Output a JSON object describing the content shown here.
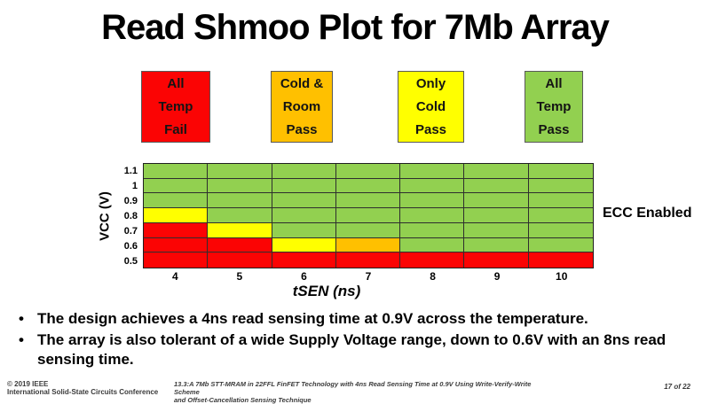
{
  "title": "Read Shmoo Plot for 7Mb Array",
  "bullets": [
    "The design achieves a 4ns read sensing time at 0.9V across the temperature.",
    "The array is also tolerant of a wide Supply Voltage range, down to 0.6V with an 8ns read sensing time."
  ],
  "footer": {
    "copyright": "© 2019 IEEE",
    "conference": "International Solid-State Circuits Conference",
    "paper_line1": "13.3:A 7Mb STT-MRAM in 22FFL FinFET Technology with 4ns Read Sensing Time at 0.9V Using Write-Verify-Write Scheme",
    "paper_line2": "and Offset-Cancellation Sensing Technique",
    "page": "17 of 22"
  },
  "chart_data": {
    "type": "heatmap",
    "title": "Read Shmoo Plot for 7Mb Array",
    "x": [
      4,
      5,
      6,
      7,
      8,
      9,
      10
    ],
    "x_tick_labels": [
      "4",
      "5",
      "6",
      "7",
      "8",
      "9",
      "10"
    ],
    "y": [
      1.1,
      1,
      0.9,
      0.8,
      0.7,
      0.6,
      0.5
    ],
    "y_tick_labels": [
      "1.1",
      "1",
      "0.9",
      "0.8",
      "0.7",
      "0.6",
      "0.5"
    ],
    "xlabel": "tSEN (ns)",
    "ylabel": "VCC (V)",
    "annotation": "ECC Enabled",
    "grid": "on",
    "legend_position": "top",
    "legend": [
      {
        "code": "R",
        "label": "All Temp Fail",
        "display_lines": [
          "All",
          "Temp",
          "Fail"
        ],
        "color": "#fb0404"
      },
      {
        "code": "O",
        "label": "Cold & Room Pass",
        "display_lines": [
          "Cold &",
          "Room",
          "Pass"
        ],
        "color": "#ffc000"
      },
      {
        "code": "Y",
        "label": "Only Cold Pass",
        "display_lines": [
          "Only",
          "Cold",
          "Pass"
        ],
        "color": "#ffff00"
      },
      {
        "code": "G",
        "label": "All Temp Pass",
        "display_lines": [
          "All",
          "Temp",
          "Pass"
        ],
        "color": "#92d050"
      }
    ],
    "cells": [
      [
        "G",
        "G",
        "G",
        "G",
        "G",
        "G",
        "G"
      ],
      [
        "G",
        "G",
        "G",
        "G",
        "G",
        "G",
        "G"
      ],
      [
        "G",
        "G",
        "G",
        "G",
        "G",
        "G",
        "G"
      ],
      [
        "Y",
        "G",
        "G",
        "G",
        "G",
        "G",
        "G"
      ],
      [
        "R",
        "Y",
        "G",
        "G",
        "G",
        "G",
        "G"
      ],
      [
        "R",
        "R",
        "Y",
        "O",
        "G",
        "G",
        "G"
      ],
      [
        "R",
        "R",
        "R",
        "R",
        "R",
        "R",
        "R"
      ]
    ]
  }
}
